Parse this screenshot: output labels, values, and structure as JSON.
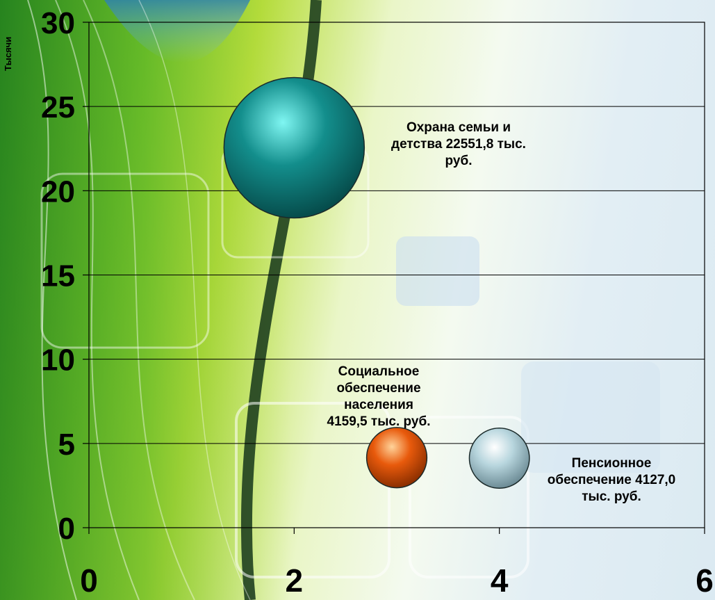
{
  "chart_data": {
    "type": "bubble",
    "ylabel": "Тысячи",
    "xlim": [
      0,
      6
    ],
    "ylim": [
      0,
      30
    ],
    "x_ticks": [
      "0",
      "2",
      "4",
      "6"
    ],
    "y_ticks": [
      "0",
      "5",
      "10",
      "15",
      "20",
      "25",
      "30"
    ],
    "grid": "horizontal",
    "points": [
      {
        "x": 2,
        "y": 22.5518,
        "value": 22551.8,
        "color": "#138e8c",
        "label": [
          "Охрана семьи и",
          "детства 22551,8 тыс.",
          "руб."
        ]
      },
      {
        "x": 3,
        "y": 4.1595,
        "value": 4159.5,
        "color": "#e85a0c",
        "label": [
          "Социальное",
          "обеспечение",
          "населения",
          "4159,5 тыс. руб."
        ]
      },
      {
        "x": 4,
        "y": 4.127,
        "value": 4127.0,
        "color": "#b8d6de",
        "label": [
          "Пенсионное",
          "обеспечение 4127,0",
          "тыс. руб."
        ]
      }
    ]
  }
}
